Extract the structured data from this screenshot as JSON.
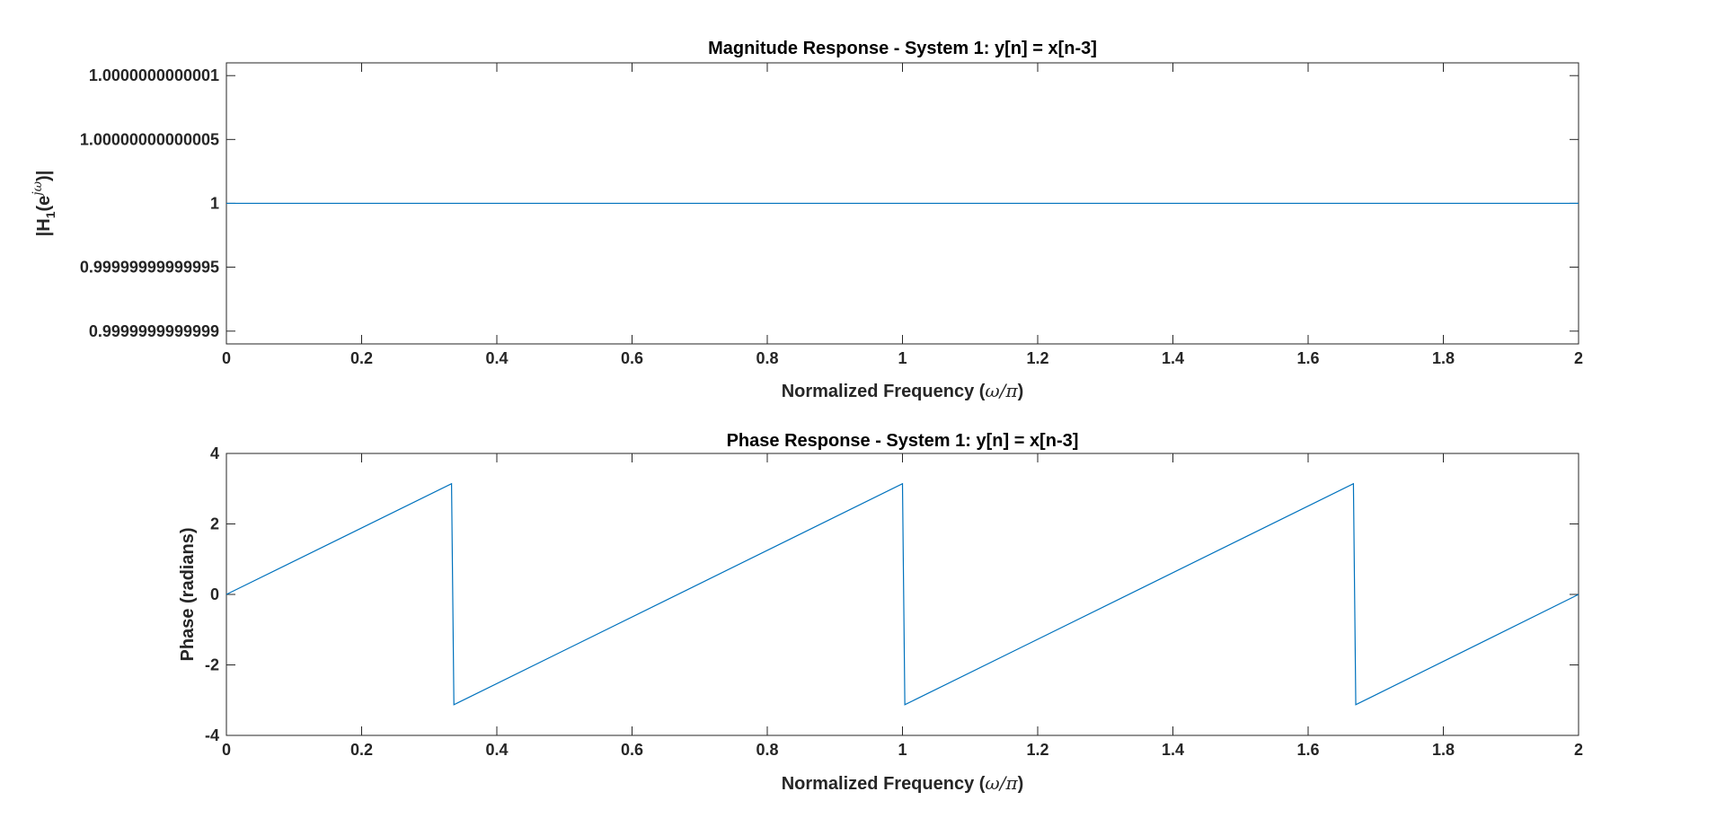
{
  "chart_data": [
    {
      "type": "line",
      "title": "Magnitude Response - System 1: y[n] = x[n-3]",
      "xlabel": {
        "prefix": "Normalized Frequency (",
        "symbol": "ω/π",
        "suffix": ")"
      },
      "ylabel": {
        "main": "|H",
        "sub": "1",
        "mid": "(e",
        "sup": "jω",
        "end": ")|"
      },
      "xlim": [
        0,
        2
      ],
      "ylim": [
        0.99999999999989,
        1.00000000000011
      ],
      "xticks": [
        0,
        0.2,
        0.4,
        0.6,
        0.8,
        1,
        1.2,
        1.4,
        1.6,
        1.8,
        2
      ],
      "xtick_labels": [
        "0",
        "0.2",
        "0.4",
        "0.6",
        "0.8",
        "1",
        "1.2",
        "1.4",
        "1.6",
        "1.8",
        "2"
      ],
      "yticks": [
        0.9999999999999,
        0.99999999999995,
        1,
        1.00000000000005,
        1.0000000000001
      ],
      "ytick_labels": [
        "0.9999999999999",
        "0.99999999999995",
        "1",
        "1.00000000000005",
        "1.0000000000001"
      ],
      "grid": false,
      "color": "#0072bd",
      "series": [
        {
          "x": [
            0,
            2
          ],
          "y": [
            1,
            1
          ]
        }
      ]
    },
    {
      "type": "line",
      "title": "Phase Response - System 1: y[n] = x[n-3]",
      "xlabel": {
        "prefix": "Normalized Frequency (",
        "symbol": "ω/π",
        "suffix": ")"
      },
      "ylabel": "Phase (radians)",
      "xlim": [
        0,
        2
      ],
      "ylim": [
        -4,
        4
      ],
      "xticks": [
        0,
        0.2,
        0.4,
        0.6,
        0.8,
        1,
        1.2,
        1.4,
        1.6,
        1.8,
        2
      ],
      "xtick_labels": [
        "0",
        "0.2",
        "0.4",
        "0.6",
        "0.8",
        "1",
        "1.2",
        "1.4",
        "1.6",
        "1.8",
        "2"
      ],
      "yticks": [
        -4,
        -2,
        0,
        2,
        4
      ],
      "ytick_labels": [
        "-4",
        "-2",
        "0",
        "2",
        "4"
      ],
      "grid": false,
      "color": "#0072bd",
      "series": [
        {
          "x": [
            0,
            0.333,
            0.3365,
            1.0,
            1.0035,
            1.667,
            1.6705,
            2.0
          ],
          "y": [
            0,
            3.14,
            -3.13,
            3.14,
            -3.13,
            3.14,
            -3.13,
            0
          ]
        }
      ]
    }
  ]
}
